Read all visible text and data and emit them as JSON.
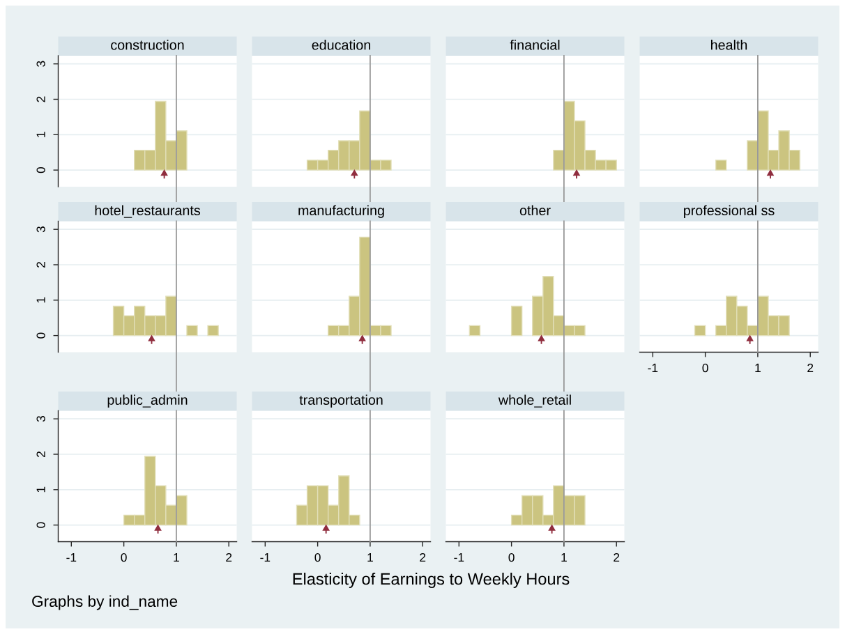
{
  "chart_data": [
    {
      "type": "histogram",
      "title": "construction",
      "series": [
        {
          "bins": [
            0.2,
            0.4,
            0.6,
            0.8,
            1.0,
            1.2
          ],
          "values": [
            0.56,
            0.56,
            1.94,
            0.83,
            1.11
          ],
          "color": "#cbc480"
        },
        {
          "type": "scatter",
          "x": [
            0.77
          ],
          "values": [
            -0.11
          ],
          "color": "#902d3e",
          "marker": "triangle"
        }
      ],
      "ref_lines": [
        {
          "axis": "x",
          "value": 1,
          "color": "#999999"
        }
      ],
      "xlim": [
        -1.25,
        2.15
      ],
      "xticks": [
        -1,
        0,
        1,
        2
      ],
      "ylim": [
        -0.47,
        3.23
      ],
      "yticks": [
        0,
        1,
        2,
        3
      ],
      "grid": "y",
      "tick_labels": "y"
    },
    {
      "type": "histogram",
      "title": "education",
      "series": [
        {
          "bins": [
            -0.2,
            0,
            0.2,
            0.4,
            0.6,
            0.8,
            1.0,
            1.2,
            1.4
          ],
          "values": [
            0.28,
            0.28,
            0.56,
            0.83,
            0.83,
            1.67,
            0.28,
            0.28
          ],
          "color": "#cbc480"
        },
        {
          "type": "scatter",
          "x": [
            0.7
          ],
          "values": [
            -0.11
          ],
          "color": "#902d3e",
          "marker": "triangle"
        }
      ],
      "ref_lines": [
        {
          "axis": "x",
          "value": 1,
          "color": "#999999"
        }
      ],
      "xlim": [
        -1.25,
        2.15
      ],
      "xticks": [
        -1,
        0,
        1,
        2
      ],
      "ylim": [
        -0.47,
        3.23
      ],
      "yticks": [
        0,
        1,
        2,
        3
      ],
      "grid": "y",
      "tick_labels": false
    },
    {
      "type": "histogram",
      "title": "financial",
      "series": [
        {
          "bins": [
            0.8,
            1.0,
            1.2,
            1.4,
            1.6,
            1.8,
            2.0
          ],
          "values": [
            0.56,
            1.94,
            1.39,
            0.56,
            0.28,
            0.28
          ],
          "color": "#cbc480"
        },
        {
          "type": "scatter",
          "x": [
            1.24
          ],
          "values": [
            -0.11
          ],
          "color": "#902d3e",
          "marker": "triangle"
        }
      ],
      "ref_lines": [
        {
          "axis": "x",
          "value": 1,
          "color": "#999999"
        }
      ],
      "xlim": [
        -1.25,
        2.15
      ],
      "xticks": [
        -1,
        0,
        1,
        2
      ],
      "ylim": [
        -0.47,
        3.23
      ],
      "yticks": [
        0,
        1,
        2,
        3
      ],
      "grid": "y",
      "tick_labels": false
    },
    {
      "type": "histogram",
      "title": "health",
      "series": [
        {
          "bins": [
            0.2,
            0.4,
            0.6,
            0.8,
            1.0,
            1.2,
            1.4,
            1.6,
            1.8
          ],
          "values": [
            0.28,
            0,
            0,
            0.83,
            1.67,
            0.56,
            1.11,
            0.56
          ],
          "color": "#cbc480"
        },
        {
          "type": "scatter",
          "x": [
            1.24
          ],
          "values": [
            -0.11
          ],
          "color": "#902d3e",
          "marker": "triangle"
        }
      ],
      "ref_lines": [
        {
          "axis": "x",
          "value": 1,
          "color": "#999999"
        }
      ],
      "xlim": [
        -1.25,
        2.15
      ],
      "xticks": [
        -1,
        0,
        1,
        2
      ],
      "ylim": [
        -0.47,
        3.23
      ],
      "yticks": [
        0,
        1,
        2,
        3
      ],
      "grid": "y",
      "tick_labels": false
    },
    {
      "type": "histogram",
      "title": "hotel_restaurants",
      "series": [
        {
          "bins": [
            -0.2,
            0,
            0.2,
            0.4,
            0.6,
            0.8,
            1.0,
            1.2,
            1.4,
            1.6,
            1.8
          ],
          "values": [
            0.83,
            0.56,
            0.83,
            0.56,
            0.56,
            1.11,
            0,
            0.28,
            0,
            0.28
          ],
          "color": "#cbc480"
        },
        {
          "type": "scatter",
          "x": [
            0.53
          ],
          "values": [
            -0.11
          ],
          "color": "#902d3e",
          "marker": "triangle"
        }
      ],
      "ref_lines": [
        {
          "axis": "x",
          "value": 1,
          "color": "#999999"
        }
      ],
      "xlim": [
        -1.25,
        2.15
      ],
      "xticks": [
        -1,
        0,
        1,
        2
      ],
      "ylim": [
        -0.47,
        3.23
      ],
      "yticks": [
        0,
        1,
        2,
        3
      ],
      "grid": "y",
      "tick_labels": "y"
    },
    {
      "type": "histogram",
      "title": "manufacturing",
      "series": [
        {
          "bins": [
            0.2,
            0.4,
            0.6,
            0.8,
            1.0,
            1.2,
            1.4
          ],
          "values": [
            0.28,
            0.28,
            1.11,
            2.78,
            0.28,
            0.28
          ],
          "color": "#cbc480"
        },
        {
          "type": "scatter",
          "x": [
            0.85
          ],
          "values": [
            -0.11
          ],
          "color": "#902d3e",
          "marker": "triangle"
        }
      ],
      "ref_lines": [
        {
          "axis": "x",
          "value": 1,
          "color": "#999999"
        }
      ],
      "xlim": [
        -1.25,
        2.15
      ],
      "xticks": [
        -1,
        0,
        1,
        2
      ],
      "ylim": [
        -0.47,
        3.23
      ],
      "yticks": [
        0,
        1,
        2,
        3
      ],
      "grid": "y",
      "tick_labels": false
    },
    {
      "type": "histogram",
      "title": "other",
      "series": [
        {
          "bins": [
            -0.8,
            -0.6,
            -0.4,
            -0.2,
            0,
            0.2,
            0.4,
            0.6,
            0.8,
            1.0,
            1.2,
            1.4
          ],
          "values": [
            0.28,
            0,
            0,
            0,
            0.83,
            0,
            1.11,
            1.67,
            0.56,
            0.28,
            0.28
          ],
          "color": "#cbc480"
        },
        {
          "type": "scatter",
          "x": [
            0.57
          ],
          "values": [
            -0.11
          ],
          "color": "#902d3e",
          "marker": "triangle"
        }
      ],
      "ref_lines": [
        {
          "axis": "x",
          "value": 1,
          "color": "#999999"
        }
      ],
      "xlim": [
        -1.25,
        2.15
      ],
      "xticks": [
        -1,
        0,
        1,
        2
      ],
      "ylim": [
        -0.47,
        3.23
      ],
      "yticks": [
        0,
        1,
        2,
        3
      ],
      "grid": "y",
      "tick_labels": false
    },
    {
      "type": "histogram",
      "title": "professional ss",
      "series": [
        {
          "bins": [
            -0.2,
            0,
            0.2,
            0.4,
            0.6,
            0.8,
            1.0,
            1.2,
            1.4,
            1.6
          ],
          "values": [
            0.28,
            0,
            0.28,
            1.11,
            0.83,
            0.28,
            1.11,
            0.56,
            0.56
          ],
          "color": "#cbc480"
        },
        {
          "type": "scatter",
          "x": [
            0.85
          ],
          "values": [
            -0.11
          ],
          "color": "#902d3e",
          "marker": "triangle"
        }
      ],
      "ref_lines": [
        {
          "axis": "x",
          "value": 1,
          "color": "#999999"
        }
      ],
      "xlim": [
        -1.25,
        2.15
      ],
      "xticks": [
        -1,
        0,
        1,
        2
      ],
      "ylim": [
        -0.47,
        3.23
      ],
      "yticks": [
        0,
        1,
        2,
        3
      ],
      "grid": "y",
      "tick_labels": "x"
    },
    {
      "type": "histogram",
      "title": "public_admin",
      "series": [
        {
          "bins": [
            0,
            0.2,
            0.4,
            0.6,
            0.8,
            1.0,
            1.2
          ],
          "values": [
            0.28,
            0.28,
            1.94,
            1.11,
            0.56,
            0.83
          ],
          "color": "#cbc480"
        },
        {
          "type": "scatter",
          "x": [
            0.65
          ],
          "values": [
            -0.11
          ],
          "color": "#902d3e",
          "marker": "triangle"
        }
      ],
      "ref_lines": [
        {
          "axis": "x",
          "value": 1,
          "color": "#999999"
        }
      ],
      "xlim": [
        -1.25,
        2.15
      ],
      "xticks": [
        -1,
        0,
        1,
        2
      ],
      "ylim": [
        -0.47,
        3.23
      ],
      "yticks": [
        0,
        1,
        2,
        3
      ],
      "grid": "y",
      "annotations": [
        "Graphs by ind_name"
      ]
    },
    {
      "type": "histogram",
      "title": "transportation",
      "xlabel": "Elasticity of Earnings to Weekly Hours",
      "series": [
        {
          "bins": [
            -0.4,
            -0.2,
            0,
            0.2,
            0.4,
            0.6,
            0.8
          ],
          "values": [
            0.56,
            1.11,
            1.11,
            0.56,
            1.39,
            0.28
          ],
          "color": "#cbc480"
        },
        {
          "type": "scatter",
          "x": [
            0.16
          ],
          "values": [
            -0.11
          ],
          "color": "#902d3e",
          "marker": "triangle"
        }
      ],
      "ref_lines": [
        {
          "axis": "x",
          "value": 1,
          "color": "#999999"
        }
      ],
      "xlim": [
        -1.25,
        2.15
      ],
      "xticks": [
        -1,
        0,
        1,
        2
      ],
      "ylim": [
        -0.47,
        3.23
      ],
      "yticks": [
        0,
        1,
        2,
        3
      ],
      "grid": "y",
      "tick_labels": "x"
    },
    {
      "type": "histogram",
      "title": "whole_retail",
      "series": [
        {
          "bins": [
            0,
            0.2,
            0.4,
            0.6,
            0.8,
            1.0,
            1.2,
            1.4
          ],
          "values": [
            0.28,
            0.83,
            0.83,
            0.28,
            1.11,
            0.83,
            0.83
          ],
          "color": "#cbc480"
        },
        {
          "type": "scatter",
          "x": [
            0.77
          ],
          "values": [
            -0.11
          ],
          "color": "#902d3e",
          "marker": "triangle"
        }
      ],
      "ref_lines": [
        {
          "axis": "x",
          "value": 1,
          "color": "#999999"
        }
      ],
      "xlim": [
        -1.25,
        2.15
      ],
      "xticks": [
        -1,
        0,
        1,
        2
      ],
      "ylim": [
        -0.47,
        3.23
      ],
      "yticks": [
        0,
        1,
        2,
        3
      ],
      "grid": "y",
      "tick_labels": "x"
    }
  ]
}
